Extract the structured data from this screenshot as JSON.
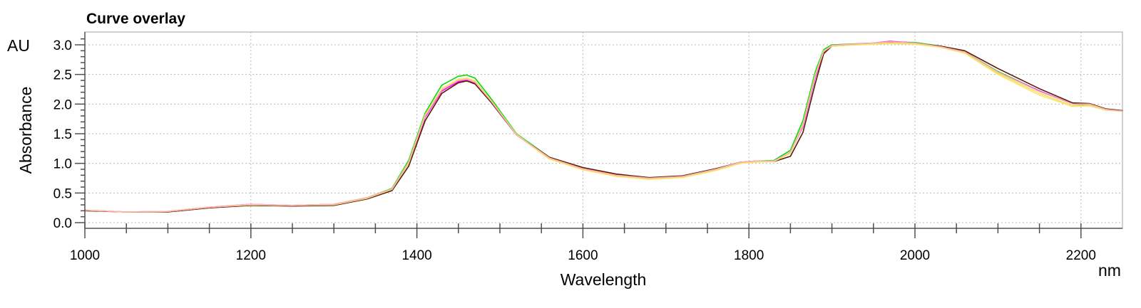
{
  "chart_data": {
    "type": "line",
    "title": "Curve overlay",
    "xlabel": "Wavelength",
    "ylabel": "Absorbance",
    "x_unit": "nm",
    "y_unit": "AU",
    "xlim": [
      1000,
      2250
    ],
    "ylim": [
      0,
      3.25
    ],
    "x_ticks": [
      1000,
      1200,
      1400,
      1600,
      1800,
      2000,
      2200
    ],
    "x_tick_labels": [
      "1000",
      "1200",
      "1400",
      "1600",
      "1800",
      "2000",
      "2200"
    ],
    "y_ticks": [
      0,
      0.5,
      1.0,
      1.5,
      2.0,
      2.5,
      3.0
    ],
    "y_tick_labels": [
      "0.0",
      "0.5",
      "1.0",
      "1.5",
      "2.0",
      "2.5",
      "3.0"
    ],
    "grid": true,
    "x": [
      1000,
      1050,
      1100,
      1150,
      1200,
      1250,
      1300,
      1340,
      1370,
      1390,
      1410,
      1430,
      1450,
      1460,
      1470,
      1490,
      1520,
      1560,
      1600,
      1640,
      1680,
      1720,
      1760,
      1790,
      1810,
      1830,
      1850,
      1865,
      1880,
      1890,
      1900,
      1950,
      1970,
      2000,
      2030,
      2060,
      2100,
      2150,
      2190,
      2210,
      2230,
      2250
    ],
    "series": [
      {
        "color": "#00dd00",
        "values": [
          0.21,
          0.18,
          0.19,
          0.26,
          0.3,
          0.29,
          0.31,
          0.42,
          0.58,
          1.05,
          1.85,
          2.32,
          2.47,
          2.49,
          2.44,
          2.08,
          1.5,
          1.1,
          0.92,
          0.81,
          0.75,
          0.78,
          0.9,
          1.02,
          1.04,
          1.05,
          1.22,
          1.72,
          2.55,
          2.92,
          3.0,
          3.03,
          3.05,
          3.04,
          2.98,
          2.88,
          2.55,
          2.22,
          2.0,
          1.99,
          1.91,
          1.88
        ]
      },
      {
        "color": "#ff00ff",
        "values": [
          0.21,
          0.18,
          0.19,
          0.26,
          0.31,
          0.29,
          0.31,
          0.42,
          0.57,
          1.0,
          1.78,
          2.22,
          2.38,
          2.4,
          2.35,
          2.03,
          1.48,
          1.09,
          0.92,
          0.81,
          0.75,
          0.78,
          0.9,
          1.02,
          1.04,
          1.04,
          1.18,
          1.62,
          2.45,
          2.88,
          2.99,
          3.03,
          3.06,
          3.03,
          2.97,
          2.88,
          2.54,
          2.22,
          2.0,
          2.0,
          1.91,
          1.88
        ]
      },
      {
        "color": "#5a1a0a",
        "values": [
          0.2,
          0.18,
          0.18,
          0.25,
          0.29,
          0.28,
          0.29,
          0.4,
          0.54,
          0.95,
          1.72,
          2.18,
          2.36,
          2.39,
          2.34,
          2.02,
          1.48,
          1.1,
          0.93,
          0.82,
          0.76,
          0.79,
          0.91,
          1.02,
          1.03,
          1.03,
          1.12,
          1.52,
          2.35,
          2.85,
          2.98,
          3.02,
          3.04,
          3.02,
          2.98,
          2.9,
          2.6,
          2.26,
          2.02,
          2.01,
          1.92,
          1.89
        ]
      },
      {
        "color": "#ffe566",
        "values": [
          0.21,
          0.18,
          0.19,
          0.26,
          0.3,
          0.29,
          0.31,
          0.42,
          0.57,
          1.02,
          1.82,
          2.26,
          2.42,
          2.44,
          2.39,
          2.05,
          1.48,
          1.07,
          0.89,
          0.78,
          0.73,
          0.76,
          0.88,
          1.0,
          1.02,
          1.03,
          1.18,
          1.66,
          2.5,
          2.9,
          2.98,
          3.01,
          3.02,
          3.01,
          2.96,
          2.86,
          2.5,
          2.15,
          1.96,
          1.97,
          1.9,
          1.88
        ]
      },
      {
        "color": "#e8e866",
        "values": [
          0.21,
          0.18,
          0.19,
          0.26,
          0.3,
          0.29,
          0.3,
          0.41,
          0.56,
          1.0,
          1.8,
          2.24,
          2.41,
          2.43,
          2.38,
          2.05,
          1.49,
          1.08,
          0.9,
          0.79,
          0.74,
          0.77,
          0.89,
          1.01,
          1.03,
          1.03,
          1.17,
          1.64,
          2.48,
          2.89,
          2.98,
          3.02,
          3.03,
          3.02,
          2.97,
          2.87,
          2.52,
          2.18,
          1.97,
          1.98,
          1.9,
          1.88
        ]
      },
      {
        "color": "#ffb0b0",
        "values": [
          0.21,
          0.18,
          0.19,
          0.26,
          0.31,
          0.29,
          0.31,
          0.42,
          0.57,
          1.01,
          1.8,
          2.24,
          2.4,
          2.42,
          2.37,
          2.04,
          1.48,
          1.09,
          0.91,
          0.8,
          0.75,
          0.78,
          0.9,
          1.02,
          1.04,
          1.04,
          1.19,
          1.65,
          2.48,
          2.89,
          2.99,
          3.03,
          3.05,
          3.03,
          2.97,
          2.88,
          2.54,
          2.21,
          2.0,
          2.0,
          1.91,
          1.88
        ]
      }
    ]
  }
}
